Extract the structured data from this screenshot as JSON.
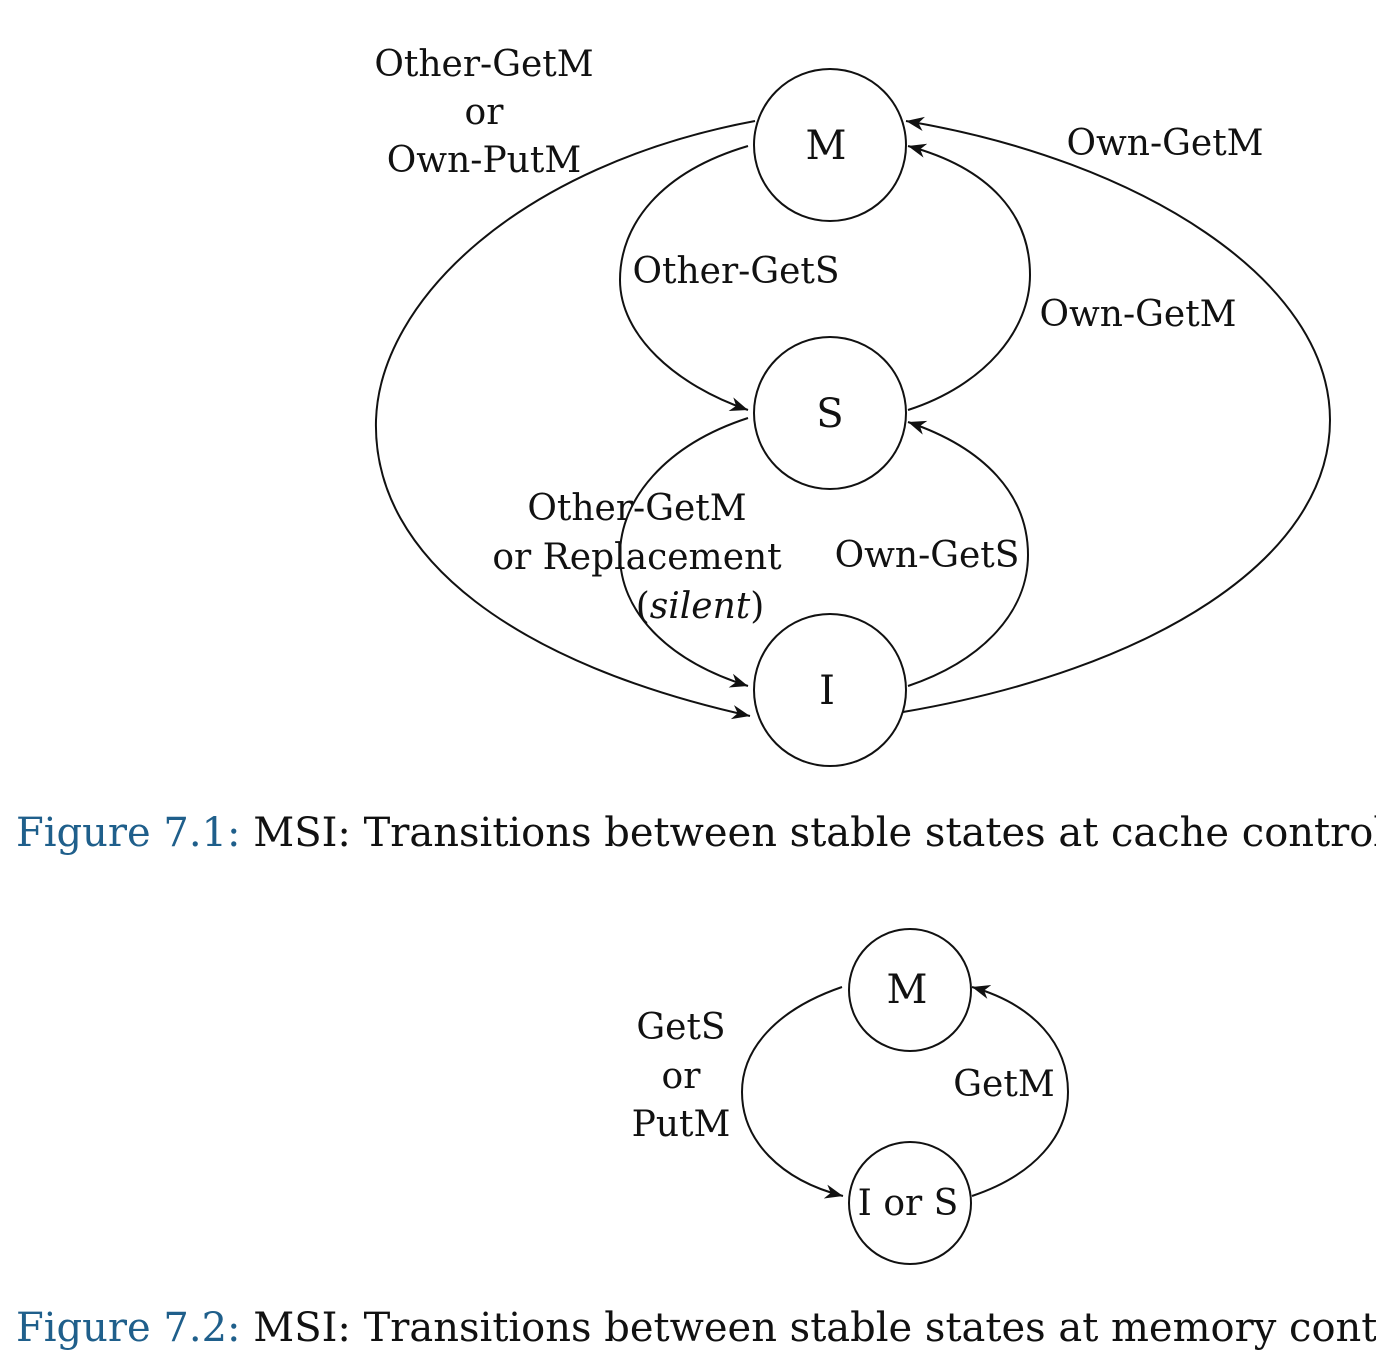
{
  "figure1": {
    "states": {
      "m": "M",
      "s": "S",
      "i": "I"
    },
    "edges": {
      "m_to_i": [
        "Other-GetM",
        "or",
        "Own-PutM"
      ],
      "m_to_s": "Other-GetS",
      "s_to_m": "Own-GetM",
      "i_to_m": "Own-GetM",
      "s_to_i": [
        "Other-GetM",
        "or Replacement",
        "silent"
      ],
      "i_to_s": "Own-GetS"
    },
    "caption": {
      "number": "Figure 7.1:",
      "text": "MSI: Transitions between stable states at cache controller."
    }
  },
  "figure2": {
    "states": {
      "m": "M",
      "ios": "I or S"
    },
    "edges": {
      "m_to_ios": [
        "GetS",
        "or",
        "PutM"
      ],
      "ios_to_m": "GetM"
    },
    "caption": {
      "number": "Figure 7.2:",
      "text": "MSI: Transitions between stable states at memory controller."
    }
  },
  "colors": {
    "caption_number": "#1f5f8b",
    "ink": "#111111"
  }
}
